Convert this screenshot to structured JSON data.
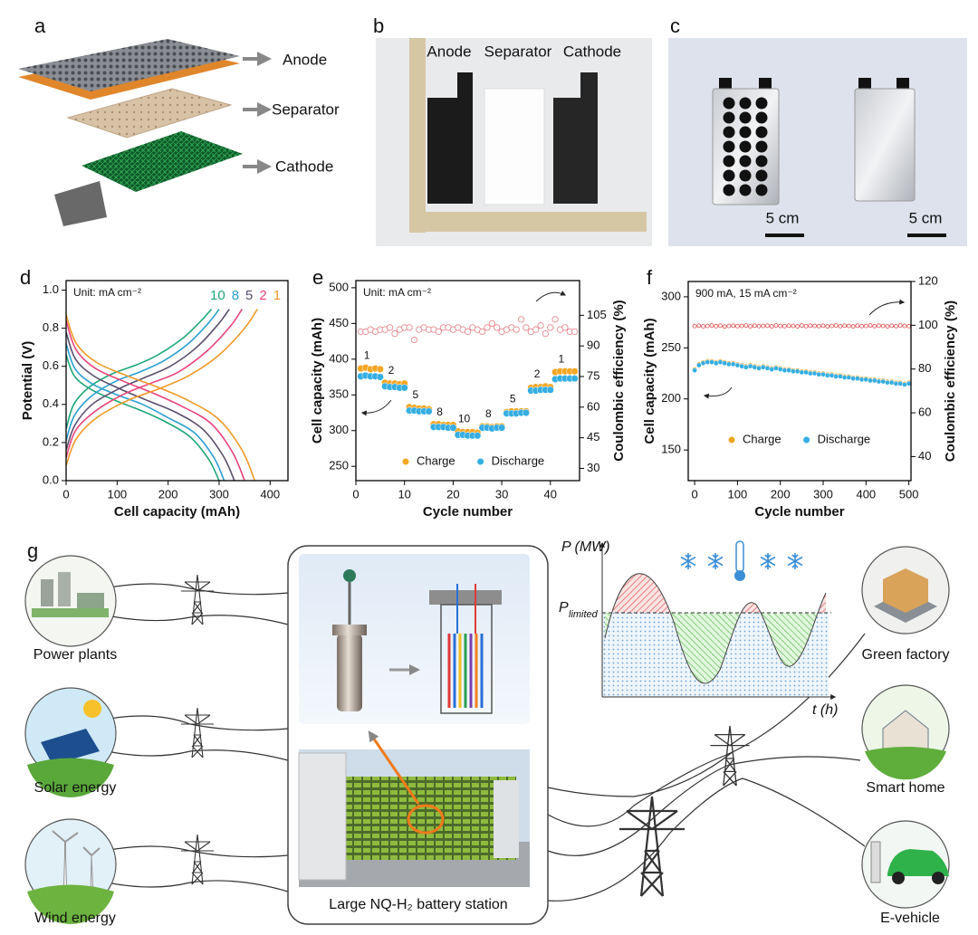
{
  "panel_labels": [
    "a",
    "b",
    "c",
    "d",
    "e",
    "f",
    "g"
  ],
  "panel_a": {
    "labels": [
      "Anode",
      "Separator",
      "Cathode"
    ]
  },
  "panel_b": {
    "labels": [
      "Anode",
      "Separator",
      "Cathode"
    ]
  },
  "panel_c": {
    "scale_bars": [
      "5 cm",
      "5 cm"
    ]
  },
  "chart_data": [
    {
      "type": "line",
      "annotation": "Unit: mA cm⁻²",
      "x_label": "Cell capacity (mAh)",
      "y_label": "Potential (V)",
      "xlim": [
        0,
        435
      ],
      "xticks": [
        0,
        100,
        200,
        300,
        400
      ],
      "ylim": [
        0,
        1.05
      ],
      "yticks": [
        {
          "value": 0,
          "label": "0.0"
        },
        0.2,
        0.4,
        0.6,
        0.8,
        {
          "value": 1,
          "label": "1.0"
        }
      ],
      "series": [
        {
          "name": "10",
          "color": "#1fa77a",
          "charge_x": [
            0,
            15,
            45,
            90,
            140,
            180,
            230,
            265,
            285
          ],
          "charge_values": [
            0.27,
            0.4,
            0.49,
            0.56,
            0.61,
            0.66,
            0.75,
            0.84,
            0.9
          ],
          "discharge_x": [
            0,
            16,
            48,
            97,
            145,
            194,
            243,
            280,
            300
          ],
          "discharge_values": [
            0.66,
            0.55,
            0.48,
            0.42,
            0.37,
            0.31,
            0.23,
            0.11,
            0
          ]
        },
        {
          "name": "8",
          "color": "#2b9fd0",
          "charge_x": [
            0,
            16,
            48,
            96,
            144,
            192,
            240,
            280,
            300
          ],
          "charge_values": [
            0.21,
            0.34,
            0.44,
            0.52,
            0.57,
            0.63,
            0.72,
            0.83,
            0.9
          ],
          "discharge_x": [
            0,
            17,
            50,
            100,
            150,
            200,
            252,
            290,
            310
          ],
          "discharge_values": [
            0.72,
            0.59,
            0.51,
            0.45,
            0.4,
            0.33,
            0.25,
            0.12,
            0
          ]
        },
        {
          "name": "5",
          "color": "#5a4e6e",
          "charge_x": [
            0,
            17,
            51,
            102,
            153,
            204,
            256,
            298,
            320
          ],
          "charge_values": [
            0.16,
            0.29,
            0.4,
            0.48,
            0.54,
            0.6,
            0.7,
            0.82,
            0.9
          ],
          "discharge_x": [
            0,
            18,
            54,
            107,
            160,
            214,
            268,
            308,
            330
          ],
          "discharge_values": [
            0.78,
            0.64,
            0.55,
            0.48,
            0.42,
            0.36,
            0.27,
            0.13,
            0
          ]
        },
        {
          "name": "2",
          "color": "#e8457a",
          "charge_x": [
            0,
            18,
            55,
            110,
            165,
            220,
            276,
            322,
            345
          ],
          "charge_values": [
            0.12,
            0.26,
            0.36,
            0.45,
            0.51,
            0.57,
            0.68,
            0.81,
            0.9
          ],
          "discharge_x": [
            0,
            19,
            57,
            114,
            170,
            227,
            284,
            326,
            350
          ],
          "discharge_values": [
            0.84,
            0.69,
            0.59,
            0.52,
            0.46,
            0.39,
            0.3,
            0.15,
            0
          ]
        },
        {
          "name": "1",
          "color": "#f09a2a",
          "charge_x": [
            0,
            20,
            60,
            120,
            180,
            240,
            300,
            350,
            375
          ],
          "charge_values": [
            0.08,
            0.22,
            0.33,
            0.42,
            0.48,
            0.55,
            0.66,
            0.8,
            0.9
          ],
          "discharge_x": [
            0,
            20,
            60,
            120,
            180,
            240,
            300,
            345,
            370
          ],
          "discharge_values": [
            0.87,
            0.72,
            0.62,
            0.55,
            0.49,
            0.42,
            0.32,
            0.16,
            0
          ]
        }
      ]
    },
    {
      "type": "scatter",
      "annotation": "Unit: mA cm⁻²",
      "x_label": "Cycle number",
      "y_label": "Cell capacity (mAh)",
      "y2_label": "Coulombic efficiency (%)",
      "x": [
        1,
        2,
        3,
        4,
        5,
        6,
        7,
        8,
        9,
        10,
        11,
        12,
        13,
        14,
        15,
        16,
        17,
        18,
        19,
        20,
        21,
        22,
        23,
        24,
        25,
        26,
        27,
        28,
        29,
        30,
        31,
        32,
        33,
        34,
        35,
        36,
        37,
        38,
        39,
        40,
        41,
        42,
        43,
        44,
        45
      ],
      "xlim": [
        0,
        46
      ],
      "xticks": [
        0,
        10,
        20,
        30,
        40
      ],
      "ylim": [
        230,
        510
      ],
      "yticks": [
        250,
        300,
        350,
        400,
        450,
        500
      ],
      "y2lim": [
        24,
        122
      ],
      "y2ticks": [
        30,
        45,
        60,
        75,
        90,
        105
      ],
      "rate_labels": [
        "1",
        "2",
        "5",
        "8",
        "10",
        "8",
        "5",
        "2",
        "1"
      ],
      "series": [
        {
          "axis": "y2",
          "marker": "open",
          "color": "#e58a8f",
          "values": [
            97,
            97,
            98,
            97,
            98,
            98,
            99,
            96,
            98,
            99,
            99,
            93,
            98,
            99,
            98,
            98,
            97,
            99,
            99,
            98,
            99,
            98,
            97,
            99,
            98,
            97,
            99,
            101,
            99,
            97,
            98,
            99,
            98,
            103,
            99,
            97,
            98,
            100,
            96,
            99,
            103,
            98,
            99,
            97,
            97
          ]
        },
        {
          "name": "Charge",
          "color": "#f5a623",
          "values": [
            387,
            388,
            386,
            387,
            386,
            367,
            366,
            366,
            365,
            366,
            333,
            332,
            331,
            331,
            330,
            309,
            309,
            308,
            308,
            308,
            299,
            298,
            298,
            298,
            297,
            306,
            306,
            305,
            306,
            306,
            326,
            327,
            327,
            327,
            327,
            360,
            361,
            361,
            362,
            361,
            382,
            383,
            383,
            383,
            383
          ]
        },
        {
          "name": "Discharge",
          "color": "#35aee2",
          "values": [
            376,
            377,
            376,
            376,
            375,
            362,
            361,
            361,
            360,
            360,
            328,
            328,
            327,
            327,
            327,
            305,
            305,
            305,
            304,
            304,
            294,
            294,
            293,
            293,
            293,
            304,
            304,
            303,
            304,
            304,
            324,
            324,
            324,
            325,
            325,
            356,
            356,
            357,
            357,
            357,
            372,
            373,
            373,
            373,
            373
          ]
        }
      ]
    },
    {
      "type": "scatter",
      "annotation": "900 mA, 15 mA cm⁻²",
      "x_label": "Cycle number",
      "y_label": "Cell capacity (mAh)",
      "y2_label": "Coulombic efficiency (%)",
      "x": [
        0,
        10,
        20,
        30,
        40,
        50,
        60,
        70,
        80,
        90,
        100,
        110,
        120,
        130,
        140,
        150,
        160,
        170,
        180,
        190,
        200,
        210,
        220,
        230,
        240,
        250,
        260,
        270,
        280,
        290,
        300,
        310,
        320,
        330,
        340,
        350,
        360,
        370,
        380,
        390,
        400,
        410,
        420,
        430,
        440,
        450,
        460,
        470,
        480,
        490,
        500
      ],
      "xlim": [
        -15,
        505
      ],
      "xticks": [
        0,
        100,
        200,
        300,
        400,
        500
      ],
      "ylim": [
        120,
        315
      ],
      "yticks": [
        150,
        200,
        250,
        300
      ],
      "y2lim": [
        29,
        120
      ],
      "y2ticks": [
        40,
        60,
        80,
        100,
        120
      ],
      "series": [
        {
          "axis": "y2",
          "marker": "open",
          "color": "#e05a5a",
          "values": [
            99.6,
            99.8,
            99.5,
            99.7,
            99.9,
            99.6,
            99.8,
            99.4,
            99.7,
            99.8,
            99.6,
            99.7,
            99.9,
            99.5,
            99.8,
            99.6,
            99.7,
            99.8,
            99.5,
            99.9,
            99.7,
            99.6,
            99.8,
            99.7,
            99.5,
            99.9,
            99.6,
            99.8,
            99.7,
            99.6,
            99.8,
            99.5,
            99.7,
            99.9,
            99.6,
            99.8,
            99.7,
            99.5,
            99.8,
            99.6,
            99.7,
            99.9,
            99.6,
            99.8,
            99.7,
            99.5,
            99.8,
            99.6,
            99.9,
            99.7,
            99.6
          ]
        },
        {
          "name": "Charge",
          "color": "#f5a623",
          "values": [
            229,
            234,
            236,
            237,
            237,
            236,
            237,
            236,
            235,
            235,
            234,
            233,
            232,
            233,
            232,
            231,
            232,
            231,
            230,
            231,
            230,
            229,
            229,
            228,
            228,
            227,
            227,
            226,
            226,
            225,
            225,
            224,
            224,
            223,
            223,
            222,
            222,
            221,
            221,
            220,
            220,
            219,
            219,
            218,
            218,
            217,
            217,
            216,
            216,
            215,
            216
          ]
        },
        {
          "name": "Discharge",
          "color": "#35aee2",
          "values": [
            228,
            233,
            235,
            236,
            236,
            235,
            236,
            235,
            234,
            234,
            233,
            232,
            231,
            232,
            231,
            230,
            231,
            230,
            229,
            230,
            229,
            228,
            228,
            227,
            227,
            226,
            226,
            225,
            225,
            224,
            224,
            223,
            223,
            222,
            222,
            221,
            221,
            220,
            220,
            219,
            219,
            218,
            218,
            217,
            217,
            216,
            216,
            215,
            215,
            214,
            215
          ]
        }
      ]
    }
  ],
  "panel_g": {
    "sources": [
      "Power plants",
      "Solar energy",
      "Wind energy"
    ],
    "station": "Large NQ-H₂ battery station",
    "consumers": [
      "Green factory",
      "Smart home",
      "E-vehicle"
    ],
    "inset": {
      "y_label": "P (MW)",
      "limit_label": "P",
      "limit_sub": "limited",
      "x_label": "t (h)"
    }
  }
}
